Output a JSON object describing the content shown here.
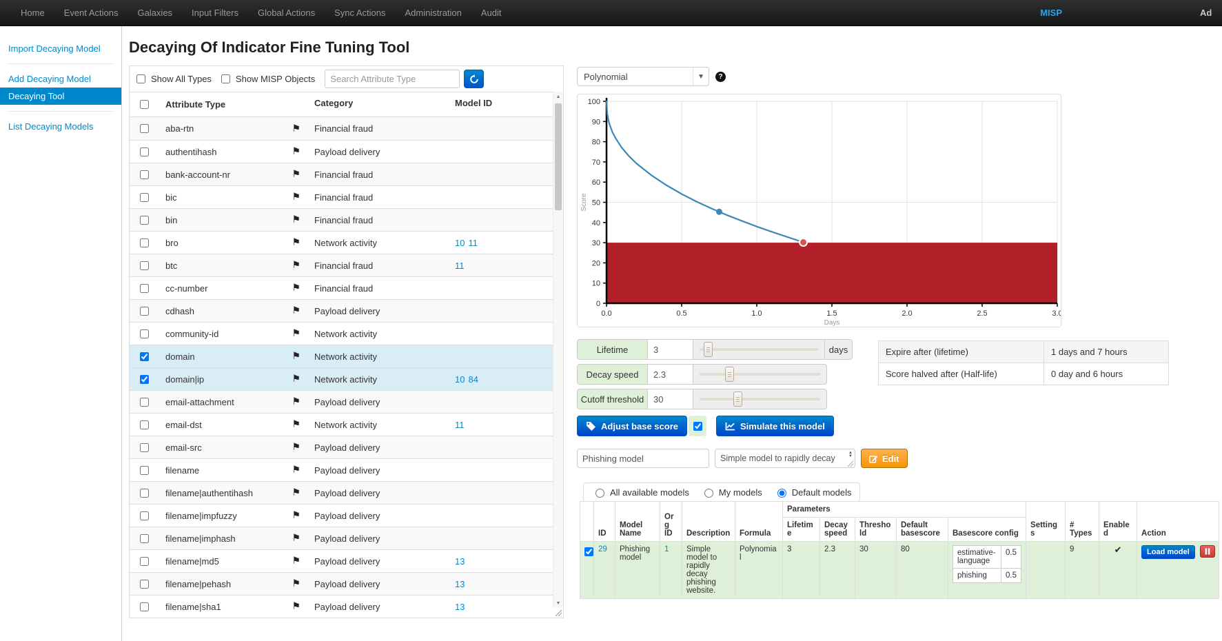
{
  "navbar": {
    "items": [
      "Home",
      "Event Actions",
      "Galaxies",
      "Input Filters",
      "Global Actions",
      "Sync Actions",
      "Administration",
      "Audit"
    ],
    "brand": "MISP",
    "right_text": "Ad"
  },
  "sidebar": {
    "items": [
      {
        "label": "Import Decaying Model",
        "active": false
      },
      {
        "label": "Add Decaying Model",
        "active": false
      },
      {
        "label": "Decaying Tool",
        "active": true
      },
      {
        "label": "List Decaying Models",
        "active": false
      }
    ]
  },
  "page": {
    "title": "Decaying Of Indicator Fine Tuning Tool"
  },
  "attribute_panel": {
    "filters": {
      "show_all_types": "Show All Types",
      "show_misp_objects": "Show MISP Objects"
    },
    "search": {
      "placeholder": "Search Attribute Type"
    },
    "columns": [
      "Attribute Type",
      "Category",
      "Model ID"
    ],
    "rows": [
      {
        "type": "aba-rtn",
        "category": "Financial fraud",
        "models": [],
        "checked": false
      },
      {
        "type": "authentihash",
        "category": "Payload delivery",
        "models": [],
        "checked": false
      },
      {
        "type": "bank-account-nr",
        "category": "Financial fraud",
        "models": [],
        "checked": false
      },
      {
        "type": "bic",
        "category": "Financial fraud",
        "models": [],
        "checked": false
      },
      {
        "type": "bin",
        "category": "Financial fraud",
        "models": [],
        "checked": false
      },
      {
        "type": "bro",
        "category": "Network activity",
        "models": [
          "10",
          "11"
        ],
        "checked": false
      },
      {
        "type": "btc",
        "category": "Financial fraud",
        "models": [
          "11"
        ],
        "checked": false
      },
      {
        "type": "cc-number",
        "category": "Financial fraud",
        "models": [],
        "checked": false
      },
      {
        "type": "cdhash",
        "category": "Payload delivery",
        "models": [],
        "checked": false
      },
      {
        "type": "community-id",
        "category": "Network activity",
        "models": [],
        "checked": false
      },
      {
        "type": "domain",
        "category": "Network activity",
        "models": [],
        "checked": true
      },
      {
        "type": "domain|ip",
        "category": "Network activity",
        "models": [
          "10",
          "84"
        ],
        "checked": true
      },
      {
        "type": "email-attachment",
        "category": "Payload delivery",
        "models": [],
        "checked": false
      },
      {
        "type": "email-dst",
        "category": "Network activity",
        "models": [
          "11"
        ],
        "checked": false
      },
      {
        "type": "email-src",
        "category": "Payload delivery",
        "models": [],
        "checked": false
      },
      {
        "type": "filename",
        "category": "Payload delivery",
        "models": [],
        "checked": false
      },
      {
        "type": "filename|authentihash",
        "category": "Payload delivery",
        "models": [],
        "checked": false
      },
      {
        "type": "filename|impfuzzy",
        "category": "Payload delivery",
        "models": [],
        "checked": false
      },
      {
        "type": "filename|imphash",
        "category": "Payload delivery",
        "models": [],
        "checked": false
      },
      {
        "type": "filename|md5",
        "category": "Payload delivery",
        "models": [
          "13"
        ],
        "checked": false
      },
      {
        "type": "filename|pehash",
        "category": "Payload delivery",
        "models": [
          "13"
        ],
        "checked": false
      },
      {
        "type": "filename|sha1",
        "category": "Payload delivery",
        "models": [
          "13"
        ],
        "checked": false
      }
    ]
  },
  "model_controls": {
    "formula": {
      "selected": "Polynomial"
    },
    "sliders": [
      {
        "label": "Lifetime",
        "value": "3",
        "suffix": "days",
        "pct": 8
      },
      {
        "label": "Decay speed",
        "value": "2.3",
        "suffix": "",
        "pct": 24
      },
      {
        "label": "Cutoff threshold",
        "value": "30",
        "suffix": "",
        "pct": 30
      }
    ],
    "buttons": {
      "adjust": "Adjust base score",
      "adjust_checked": true,
      "simulate": "Simulate this model"
    },
    "info": [
      {
        "label": "Expire after (lifetime)",
        "value": "1 days and 7 hours"
      },
      {
        "label": "Score halved after (Half-life)",
        "value": "0 day and 6 hours"
      }
    ],
    "model_name": "Phishing model",
    "model_description": "Simple model to rapidly decay",
    "edit_label": "Edit"
  },
  "chart_data": {
    "type": "line",
    "title": "",
    "xlabel": "Days",
    "ylabel": "Score",
    "xlim": [
      0,
      3.0
    ],
    "ylim": [
      0,
      100
    ],
    "x_ticks": [
      0.0,
      0.5,
      1.0,
      1.5,
      2.0,
      2.5,
      3.0
    ],
    "y_ticks": [
      0,
      10,
      20,
      30,
      40,
      50,
      60,
      70,
      80,
      90,
      100
    ],
    "grid_x": [
      0.5,
      1.0,
      1.5,
      2.0,
      2.5,
      3.0
    ],
    "grid_y": [
      50,
      100
    ],
    "threshold": 30,
    "threshold_color": "#b2202a",
    "line_color": "#3d87b5",
    "series": [
      {
        "name": "polynomial-decay",
        "points": [
          [
            0,
            100
          ],
          [
            0.005,
            93.8
          ],
          [
            0.01,
            91.6
          ],
          [
            0.02,
            88.6
          ],
          [
            0.04,
            84.6
          ],
          [
            0.06,
            81.8
          ],
          [
            0.1,
            77.2
          ],
          [
            0.15,
            72.8
          ],
          [
            0.2,
            69.2
          ],
          [
            0.3,
            63.3
          ],
          [
            0.4,
            58.4
          ],
          [
            0.5,
            54.1
          ],
          [
            0.6,
            50.3
          ],
          [
            0.7,
            46.9
          ],
          [
            0.8,
            43.7
          ],
          [
            0.9,
            40.8
          ],
          [
            1.0,
            38.0
          ],
          [
            1.1,
            35.4
          ],
          [
            1.2,
            32.9
          ],
          [
            1.31,
            30.2
          ]
        ]
      }
    ],
    "markers": [
      {
        "x": 0.75,
        "y": 45.3,
        "type": "current-score"
      },
      {
        "x": 1.31,
        "y": 30.2,
        "type": "cutoff-point"
      }
    ]
  },
  "models_panel": {
    "filters": [
      {
        "label": "All available models",
        "checked": false
      },
      {
        "label": "My models",
        "checked": false
      },
      {
        "label": "Default models",
        "checked": true
      }
    ],
    "table": {
      "headers": {
        "id": "ID",
        "model_name": "Model Name",
        "org_id": "Org ID",
        "description": "Description",
        "formula": "Formula",
        "parameters": "Parameters",
        "lifetime": "Lifetime",
        "decay_speed": "Decay speed",
        "threshold": "Threshold",
        "default_basescore": "Default basescore",
        "basescore_config": "Basescore config",
        "settings": "Settings",
        "types": "# Types",
        "enabled": "Enabled",
        "action": "Action"
      },
      "row": {
        "checked": true,
        "id": "29",
        "model_name": "Phishing model",
        "org_id": "1",
        "description": "Simple model to rapidly decay phishing website.",
        "formula": "Polynomial",
        "lifetime": "3",
        "decay_speed": "2.3",
        "threshold": "30",
        "default_basescore": "80",
        "basescore_config": [
          {
            "key": "estimative-language",
            "value": "0.5"
          },
          {
            "key": "phishing",
            "value": "0.5"
          }
        ],
        "settings": "",
        "types_count": "9",
        "enabled": true,
        "action": {
          "load": "Load model"
        }
      }
    }
  }
}
